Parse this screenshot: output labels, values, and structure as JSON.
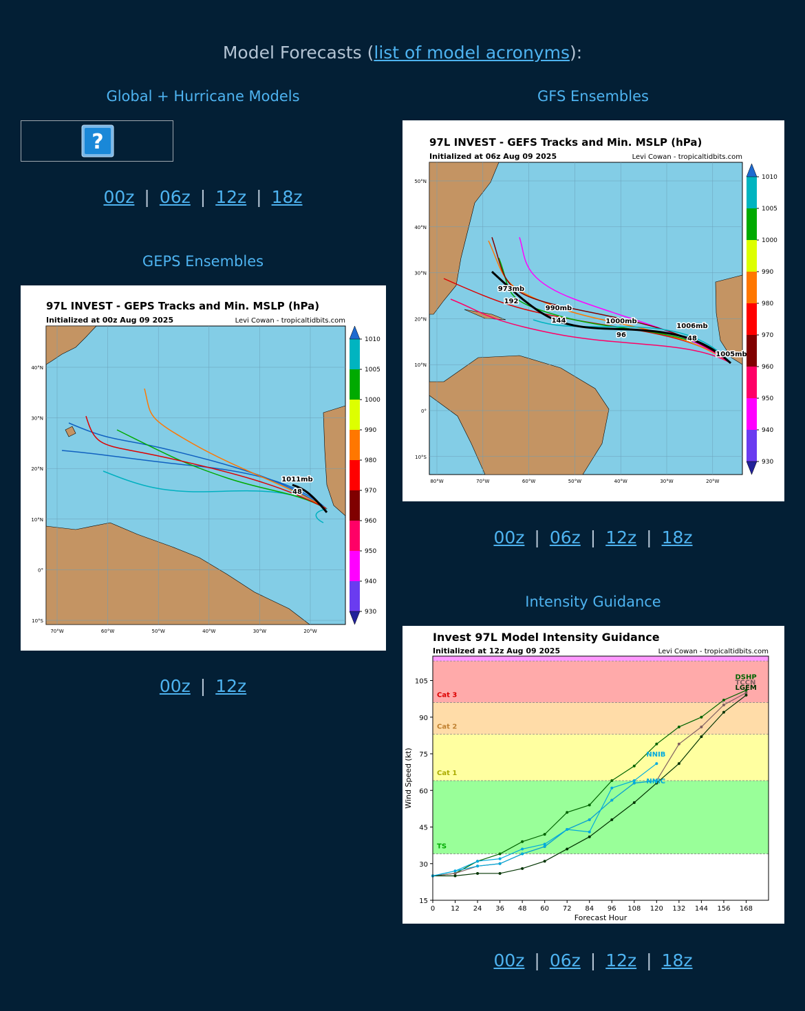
{
  "header": {
    "text": "Model Forecasts (",
    "link": "list of model acronyms",
    "suffix": "):"
  },
  "separator": "|",
  "sections": [
    {
      "title": "Global + Hurricane Models",
      "links": [
        "00z",
        "06z",
        "12z",
        "18z"
      ]
    },
    {
      "title": "GFS Ensembles",
      "links": [
        "00z",
        "06z",
        "12z",
        "18z"
      ]
    },
    {
      "title": "GEPS Ensembles",
      "links": [
        "00z",
        "12z"
      ]
    },
    {
      "title": "Intensity Guidance",
      "links": [
        "00z",
        "06z",
        "12z",
        "18z"
      ]
    }
  ],
  "maps": [
    {
      "title": "97L INVEST - GEPS Tracks and Min. MSLP (hPa)",
      "subtitle": "Initialized at 00z Aug 09 2025",
      "credit": "Levi Cowan - tropicaltidbits.com",
      "lon_labels": [
        "70°W",
        "60°W",
        "50°W",
        "40°W",
        "30°W",
        "20°W"
      ],
      "lat_labels": [
        "40°N",
        "30°N",
        "20°N",
        "10°N",
        "0°",
        "10°S"
      ],
      "colorbar": {
        "ticks": [
          930,
          940,
          950,
          960,
          970,
          980,
          990,
          1000,
          1005,
          1010
        ],
        "colors": [
          "#6a3cf0",
          "#ff00ff",
          "#ff0066",
          "#800000",
          "#ff0000",
          "#ff7700",
          "#ddff00",
          "#00aa00",
          "#00b4c0"
        ],
        "extend_colors": [
          "#22229a",
          "#1e6ad0"
        ]
      },
      "annotations": [
        "1011mb",
        "48"
      ]
    },
    {
      "title": "97L INVEST - GEFS Tracks and Min. MSLP (hPa)",
      "subtitle": "Initialized at 06z Aug 09 2025",
      "credit": "Levi Cowan - tropicaltidbits.com",
      "lon_labels": [
        "80°W",
        "70°W",
        "60°W",
        "50°W",
        "40°W",
        "30°W",
        "20°W"
      ],
      "lat_labels": [
        "50°N",
        "40°N",
        "30°N",
        "20°N",
        "10°N",
        "0°",
        "10°S"
      ],
      "colorbar": {
        "ticks": [
          930,
          940,
          950,
          960,
          970,
          980,
          990,
          1000,
          1005,
          1010
        ],
        "colors": [
          "#6a3cf0",
          "#ff00ff",
          "#ff0066",
          "#800000",
          "#ff0000",
          "#ff7700",
          "#ddff00",
          "#00aa00",
          "#00b4c0"
        ],
        "extend_colors": [
          "#22229a",
          "#1e6ad0"
        ]
      },
      "annotations": [
        "973mb",
        "192",
        "990mb",
        "144",
        "1000mb",
        "96",
        "1006mb",
        "48",
        "1005mb"
      ]
    }
  ],
  "chart_data": {
    "type": "line",
    "title": "Invest 97L Model Intensity Guidance",
    "subtitle": "Initialized at 12z Aug 09 2025",
    "credit": "Levi Cowan - tropicaltidbits.com",
    "x_label": "Forecast Hour",
    "y_label": "Wind Speed (kt)",
    "x": [
      0,
      12,
      24,
      36,
      48,
      60,
      72,
      84,
      96,
      108,
      120,
      132,
      144,
      156,
      168
    ],
    "xlim": [
      0,
      180
    ],
    "ylim": [
      15,
      115
    ],
    "xticks": [
      0,
      12,
      24,
      36,
      48,
      60,
      72,
      84,
      96,
      108,
      120,
      132,
      144,
      156,
      168
    ],
    "yticks": [
      15,
      30,
      45,
      60,
      75,
      90,
      105
    ],
    "bands": [
      {
        "from": 34,
        "to": 64,
        "label": "TS",
        "color": "#99ff99",
        "label_color": "#00aa00"
      },
      {
        "from": 64,
        "to": 83,
        "label": "Cat 1",
        "color": "#ffffa0",
        "label_color": "#aaaa00"
      },
      {
        "from": 83,
        "to": 96,
        "label": "Cat 2",
        "color": "#ffdca8",
        "label_color": "#c08030"
      },
      {
        "from": 96,
        "to": 113,
        "label": "Cat 3",
        "color": "#ffaaaa",
        "label_color": "#dd0000"
      },
      {
        "from": 113,
        "to": 137,
        "color": "#ff99ff"
      }
    ],
    "series": [
      {
        "name": "DSHP",
        "color": "#006400",
        "values": [
          25,
          26,
          31,
          34,
          39,
          42,
          51,
          54,
          64,
          70,
          79,
          86,
          90,
          97,
          101
        ]
      },
      {
        "name": "TCCN",
        "color": "#806060",
        "values": [
          25,
          26,
          29,
          30,
          34,
          37,
          44,
          48,
          56,
          63,
          64,
          79,
          86,
          95,
          100
        ]
      },
      {
        "name": "LGEM",
        "color": "#003300",
        "values": [
          25,
          25,
          26,
          26,
          28,
          31,
          36,
          41,
          48,
          55,
          63,
          71,
          82,
          92,
          99
        ]
      },
      {
        "name": "NNIB",
        "color": "#00aadd",
        "values": [
          25,
          27,
          31,
          32,
          36,
          38,
          44,
          43,
          61,
          64,
          71,
          null,
          null,
          null,
          null
        ]
      },
      {
        "name": "NNIC",
        "color": "#00aadd",
        "values": [
          25,
          27,
          29,
          30,
          34,
          37,
          44,
          48,
          56,
          63,
          64,
          null,
          null,
          null,
          null
        ]
      }
    ]
  }
}
